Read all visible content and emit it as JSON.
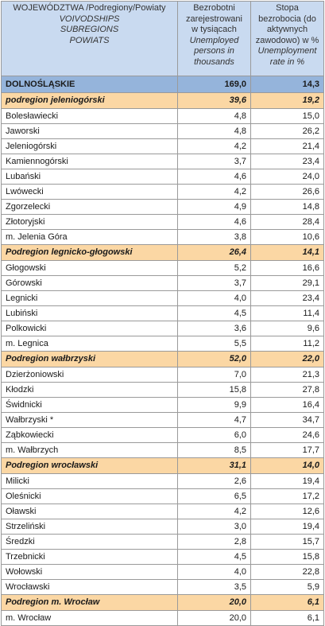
{
  "header": {
    "col1": [
      "WOJEWÓDZTWA /Podregiony/Powiaty",
      "VOIVODSHIPS",
      "SUBREGIONS",
      "POWIATS"
    ],
    "col2": [
      "Bezrobotni",
      "zarejestrowani",
      "w tysiącach",
      "Unemployed",
      "persons in",
      "thousands"
    ],
    "col3": [
      "Stopa",
      "bezrobocia  (do",
      "aktywnych",
      "zawodowo) w %",
      "Unemployment",
      "rate in  %"
    ]
  },
  "rows": [
    {
      "type": "region",
      "name": "DOLNOŚLĄSKIE",
      "unemployed": "169,0",
      "rate": "14,3"
    },
    {
      "type": "sub",
      "name": "podregion  jeleniogórski",
      "unemployed": "39,6",
      "rate": "19,2"
    },
    {
      "type": "row",
      "name": "Bolesławiecki",
      "unemployed": "4,8",
      "rate": "15,0"
    },
    {
      "type": "row",
      "name": "Jaworski",
      "unemployed": "4,8",
      "rate": "26,2"
    },
    {
      "type": "row",
      "name": "Jeleniogórski",
      "unemployed": "4,2",
      "rate": "21,4"
    },
    {
      "type": "row",
      "name": "Kamiennogórski",
      "unemployed": "3,7",
      "rate": "23,4"
    },
    {
      "type": "row",
      "name": "Lubański",
      "unemployed": "4,6",
      "rate": "24,0"
    },
    {
      "type": "row",
      "name": "Lwówecki",
      "unemployed": "4,2",
      "rate": "26,6"
    },
    {
      "type": "row",
      "name": "Zgorzelecki",
      "unemployed": "4,9",
      "rate": "14,8"
    },
    {
      "type": "row",
      "name": "Złotoryjski",
      "unemployed": "4,6",
      "rate": "28,4"
    },
    {
      "type": "row",
      "name": "m. Jelenia Góra",
      "unemployed": "3,8",
      "rate": "10,6"
    },
    {
      "type": "sub",
      "name": "Podregion legnicko-głogowski",
      "unemployed": "26,4",
      "rate": "14,1"
    },
    {
      "type": "row",
      "name": "Głogowski",
      "unemployed": "5,2",
      "rate": "16,6"
    },
    {
      "type": "row",
      "name": "Górowski",
      "unemployed": "3,7",
      "rate": "29,1"
    },
    {
      "type": "row",
      "name": "Legnicki",
      "unemployed": "4,0",
      "rate": "23,4"
    },
    {
      "type": "row",
      "name": "Lubiński",
      "unemployed": "4,5",
      "rate": "11,4"
    },
    {
      "type": "row",
      "name": "Polkowicki",
      "unemployed": "3,6",
      "rate": "9,6"
    },
    {
      "type": "row",
      "name": "m. Legnica",
      "unemployed": "5,5",
      "rate": "11,2"
    },
    {
      "type": "sub",
      "name": "Podregion wałbrzyski",
      "unemployed": "52,0",
      "rate": "22,0"
    },
    {
      "type": "row",
      "name": "Dzierżoniowski",
      "unemployed": "7,0",
      "rate": "21,3"
    },
    {
      "type": "row",
      "name": "Kłodzki",
      "unemployed": "15,8",
      "rate": "27,8"
    },
    {
      "type": "row",
      "name": "Świdnicki",
      "unemployed": "9,9",
      "rate": "16,4"
    },
    {
      "type": "row",
      "name": "Wałbrzyski *",
      "unemployed": "4,7",
      "rate": "34,7"
    },
    {
      "type": "row",
      "name": "Ząbkowiecki",
      "unemployed": "6,0",
      "rate": "24,6"
    },
    {
      "type": "row",
      "name": "m. Wałbrzych",
      "unemployed": "8,5",
      "rate": "17,7"
    },
    {
      "type": "sub",
      "name": "Podregion wrocławski",
      "unemployed": "31,1",
      "rate": "14,0"
    },
    {
      "type": "row",
      "name": "Milicki",
      "unemployed": "2,6",
      "rate": "19,4"
    },
    {
      "type": "row",
      "name": "Oleśnicki",
      "unemployed": "6,5",
      "rate": "17,2"
    },
    {
      "type": "row",
      "name": "Oławski",
      "unemployed": "4,2",
      "rate": "12,6"
    },
    {
      "type": "row",
      "name": "Strzeliński",
      "unemployed": "3,0",
      "rate": "19,4"
    },
    {
      "type": "row",
      "name": "Średzki",
      "unemployed": "2,8",
      "rate": "15,7"
    },
    {
      "type": "row",
      "name": "Trzebnicki",
      "unemployed": "4,5",
      "rate": "15,8"
    },
    {
      "type": "row",
      "name": "Wołowski",
      "unemployed": "4,0",
      "rate": "22,8"
    },
    {
      "type": "row",
      "name": "Wrocławski",
      "unemployed": "3,5",
      "rate": "5,9"
    },
    {
      "type": "sub",
      "name": "Podregion m. Wrocław",
      "unemployed": "20,0",
      "rate": "6,1"
    },
    {
      "type": "row",
      "name": "m. Wrocław",
      "unemployed": "20,0",
      "rate": "6,1"
    }
  ]
}
